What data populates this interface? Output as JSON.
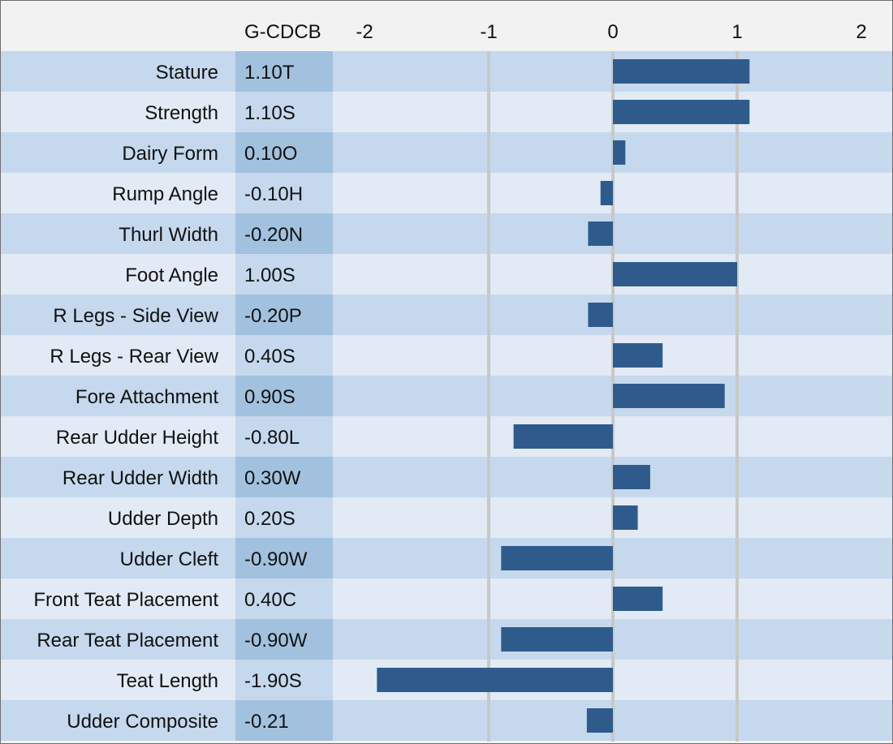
{
  "colors": {
    "header_bg": "#f2f2f2",
    "row_dark": "#c5d8ed",
    "row_light": "#e2eaf5",
    "value_col_dark": "#a2c1df",
    "value_col_light": "#c5d8ed",
    "bar": "#2f5b8c",
    "gridline": "#c8c8c8",
    "text": "#111111"
  },
  "table": {
    "value_column_header": "G-CDCB"
  },
  "chart_data": {
    "type": "bar",
    "orientation": "horizontal",
    "categories": [
      "Stature",
      "Strength",
      "Dairy Form",
      "Rump Angle",
      "Thurl Width",
      "Foot Angle",
      "R Legs - Side View",
      "R Legs - Rear View",
      "Fore Attachment",
      "Rear Udder Height",
      "Rear Udder Width",
      "Udder Depth",
      "Udder Cleft",
      "Front Teat Placement",
      "Rear Teat Placement",
      "Teat Length",
      "Udder Composite"
    ],
    "values": [
      1.1,
      1.1,
      0.1,
      -0.1,
      -0.2,
      1.0,
      -0.2,
      0.4,
      0.9,
      -0.8,
      0.3,
      0.2,
      -0.9,
      0.4,
      -0.9,
      -1.9,
      -0.21
    ],
    "value_labels": [
      "1.10T",
      "1.10S",
      "0.10O",
      "-0.10H",
      "-0.20N",
      "1.00S",
      "-0.20P",
      "0.40S",
      "0.90S",
      "-0.80L",
      "0.30W",
      "0.20S",
      "-0.90W",
      "0.40C",
      "-0.90W",
      "-1.90S",
      "-0.21"
    ],
    "xlim": [
      -2,
      2
    ],
    "xticks": [
      -2,
      -1,
      0,
      1,
      2
    ],
    "xtick_labels": [
      "-2",
      "-1",
      "0",
      "1",
      "2"
    ],
    "grid": "vertical"
  }
}
